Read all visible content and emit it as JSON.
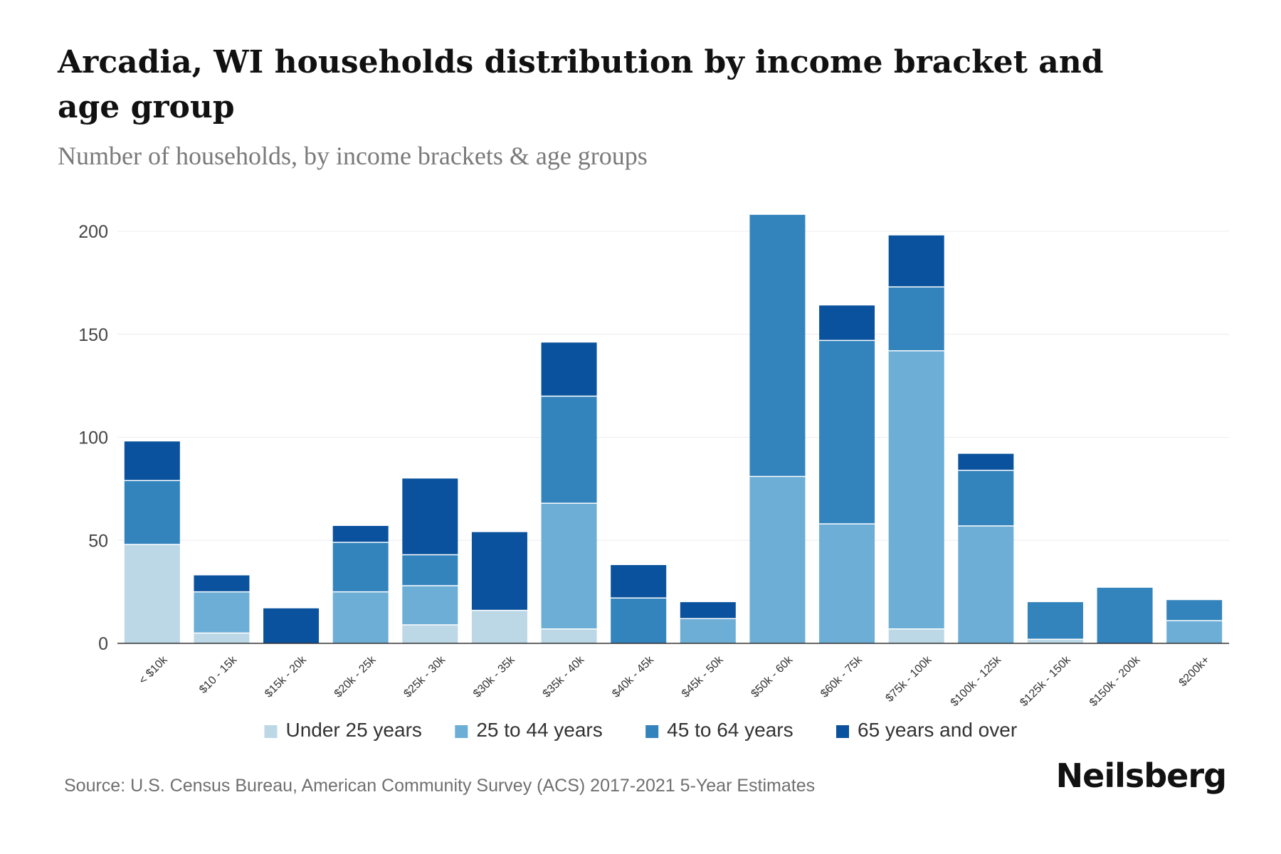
{
  "title": "Arcadia, WI households distribution by income bracket and age group",
  "subtitle": "Number of households, by income brackets & age groups",
  "source": "Source: U.S. Census Bureau, American Community Survey (ACS) 2017-2021 5-Year Estimates",
  "brand": "Neilsberg",
  "chart_data": {
    "type": "bar",
    "stacked": true,
    "categories": [
      "< $10k",
      "$10 - 15k",
      "$15k - 20k",
      "$20k - 25k",
      "$25k - 30k",
      "$30k - 35k",
      "$35k - 40k",
      "$40k - 45k",
      "$45k - 50k",
      "$50k - 60k",
      "$60k - 75k",
      "$75k - 100k",
      "$100k - 125k",
      "$125k - 150k",
      "$150k - 200k",
      "$200k+"
    ],
    "series": [
      {
        "name": "Under 25 years",
        "color": "#bcd8e6",
        "values": [
          48,
          5,
          0,
          0,
          9,
          16,
          7,
          0,
          0,
          0,
          0,
          7,
          0,
          2,
          0,
          0
        ]
      },
      {
        "name": "25 to 44 years",
        "color": "#6caed6",
        "values": [
          0,
          20,
          0,
          25,
          19,
          0,
          61,
          0,
          12,
          81,
          58,
          135,
          57,
          0,
          0,
          11
        ]
      },
      {
        "name": "45 to 64 years",
        "color": "#3383bd",
        "values": [
          31,
          0,
          0,
          24,
          15,
          0,
          52,
          22,
          0,
          127,
          89,
          31,
          27,
          18,
          27,
          10
        ]
      },
      {
        "name": "65 years and over",
        "color": "#0a529d",
        "values": [
          19,
          8,
          17,
          8,
          37,
          38,
          26,
          16,
          8,
          0,
          17,
          25,
          8,
          0,
          0,
          0
        ]
      }
    ],
    "yticks": [
      0,
      50,
      100,
      150,
      200
    ],
    "ylim": [
      0,
      210
    ],
    "xlabel": "",
    "ylabel": "",
    "legend_position": "bottom-center",
    "grid": true
  }
}
